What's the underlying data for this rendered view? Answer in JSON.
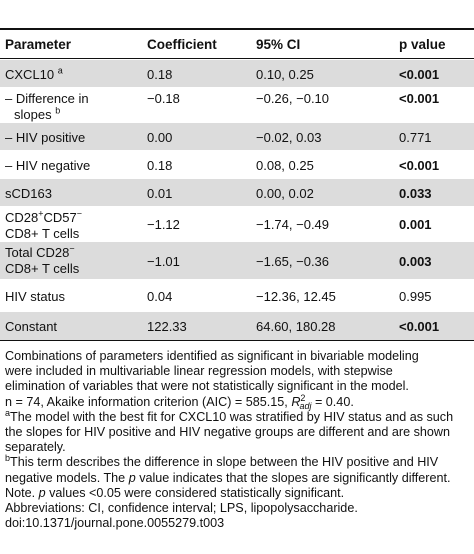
{
  "table": {
    "headers": [
      "Parameter",
      "Coefficient",
      "95% CI",
      "p value"
    ],
    "rows": [
      {
        "param": "CXCL10",
        "param_sup": "a",
        "coef": "0.18",
        "ci": "0.10, 0.25",
        "p": "<0.001",
        "p_bold": true
      },
      {
        "param": "– Difference in",
        "param_line2": "slopes",
        "param_sup": "b",
        "coef": "−0.18",
        "ci": "−0.26, −0.10",
        "p": "<0.001",
        "p_bold": true
      },
      {
        "param": "– HIV positive",
        "coef": "0.00",
        "ci": "−0.02, 0.03",
        "p": "0.771",
        "p_bold": false
      },
      {
        "param": "– HIV negative",
        "coef": "0.18",
        "ci": "0.08, 0.25",
        "p": "<0.001",
        "p_bold": true
      },
      {
        "param": "sCD163",
        "coef": "0.01",
        "ci": "0.00, 0.02",
        "p": "0.033",
        "p_bold": true
      },
      {
        "param_html_parts": [
          "CD28",
          "+",
          "CD57",
          "−"
        ],
        "param_line2": "CD8+ T cells",
        "coef": "−1.12",
        "ci": "−1.74, −0.49",
        "p": "0.001",
        "p_bold": true
      },
      {
        "param_parts": [
          "Total CD28",
          "−"
        ],
        "param_line2": "CD8+ T cells",
        "coef": "−1.01",
        "ci": "−1.65, −0.36",
        "p": "0.003",
        "p_bold": true
      },
      {
        "param": "HIV status",
        "coef": "0.04",
        "ci": "−12.36, 12.45",
        "p": "0.995",
        "p_bold": false
      },
      {
        "param": "Constant",
        "coef": "122.33",
        "ci": "64.60, 180.28",
        "p": "<0.001",
        "p_bold": true
      }
    ]
  },
  "notes": {
    "n1_l1": "Combinations of parameters identified as significant in bivariable modeling",
    "n1_l2": "were included in multivariable linear regression models, with stepwise",
    "n1_l3": "elimination of variables that were not statistically significant in the model.",
    "n2_pre": "n = 74, Akaike information criterion (AIC) = 585.15, ",
    "n2_r": "R",
    "n2_sup": "2",
    "n2_sub": "adj",
    "n2_post": " = 0.40.",
    "a_mark": "a",
    "a_l1": "The model with the best fit for CXCL10 was stratified by HIV status and as such",
    "a_l2": "the slopes for HIV positive and HIV negative groups are different and are shown",
    "a_l3": "separately.",
    "b_mark": "b",
    "b_l1": "This term describes the difference in slope between the HIV positive and HIV",
    "b_l2_pre": "negative models. The ",
    "b_l2_p": "p",
    "b_l2_post": " value indicates that the slopes are significantly different.",
    "note_pre": "Note. ",
    "note_p": "p",
    "note_post": " values <0.05 were considered statistically significant.",
    "abbrev": "Abbreviations: CI, confidence interval; LPS, lipopolysaccharide.",
    "doi": "doi:10.1371/journal.pone.0055279.t003"
  }
}
